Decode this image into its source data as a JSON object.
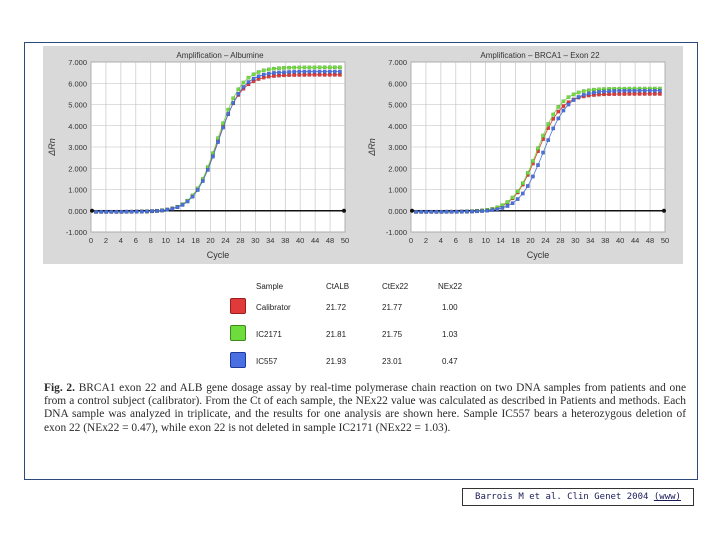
{
  "colors": {
    "calibrator": "#e03a3a",
    "sample_2171": "#6fdc3e",
    "sample_557": "#4a6fe0",
    "background": "#d9d9d9",
    "baseline": "#111111"
  },
  "chart_data": [
    {
      "type": "line",
      "title": "Amplification – Albumine",
      "xlabel": "Cycle",
      "ylabel": "ΔRn",
      "xlim": [
        0,
        50
      ],
      "ylim": [
        -1.0,
        7.0
      ],
      "x_ticks": [
        "0",
        "2",
        "4",
        "6",
        "8",
        "10",
        "14",
        "18",
        "20",
        "24",
        "28",
        "30",
        "34",
        "38",
        "40",
        "44",
        "48",
        "50"
      ],
      "y_ticks": [
        "7.000",
        "6.000",
        "5.000",
        "4.000",
        "3.000",
        "2.000",
        "1.000",
        "0.000",
        "-1.000"
      ],
      "y_tick_values": [
        7,
        6,
        5,
        4,
        3,
        2,
        1,
        0,
        -1
      ],
      "grid": true,
      "series": [
        {
          "name": "Calibrator",
          "color": "#e03a3a",
          "ct": 21.72,
          "plateau": 6.45
        },
        {
          "name": "IC2171",
          "color": "#6fdc3e",
          "ct": 21.81,
          "plateau": 6.8
        },
        {
          "name": "IC557",
          "color": "#4a6fe0",
          "ct": 21.93,
          "plateau": 6.6
        }
      ]
    },
    {
      "type": "line",
      "title": "Amplification – BRCA1 – Exon 22",
      "xlabel": "Cycle",
      "ylabel": "ΔRn",
      "xlim": [
        0,
        50
      ],
      "ylim": [
        -1.0,
        7.0
      ],
      "x_ticks": [
        "0",
        "2",
        "4",
        "6",
        "8",
        "10",
        "14",
        "18",
        "20",
        "24",
        "28",
        "30",
        "34",
        "38",
        "40",
        "44",
        "48",
        "50"
      ],
      "y_ticks": [
        "7.000",
        "6.000",
        "5.000",
        "4.000",
        "3.000",
        "2.000",
        "1.000",
        "0.000",
        "-1.000"
      ],
      "y_tick_values": [
        7,
        6,
        5,
        4,
        3,
        2,
        1,
        0,
        -1
      ],
      "grid": true,
      "series": [
        {
          "name": "Calibrator",
          "color": "#e03a3a",
          "ct": 21.77,
          "plateau": 5.55
        },
        {
          "name": "IC2171",
          "color": "#6fdc3e",
          "ct": 21.75,
          "plateau": 5.8
        },
        {
          "name": "IC557",
          "color": "#4a6fe0",
          "ct": 23.01,
          "plateau": 5.7
        }
      ]
    },
    {
      "type": "table",
      "headers": [
        "Sample",
        "CtALB",
        "CtEx22",
        "NEx22"
      ],
      "rows": [
        {
          "sample": "Calibrator",
          "ct_alb": "21.72",
          "ct_ex22": "21.77",
          "nex22": "1.00",
          "color": "#e03a3a"
        },
        {
          "sample": "IC2171",
          "ct_alb": "21.81",
          "ct_ex22": "21.75",
          "nex22": "1.03",
          "color": "#6fdc3e"
        },
        {
          "sample": "IC557",
          "ct_alb": "21.93",
          "ct_ex22": "23.01",
          "nex22": "0.47",
          "color": "#4a6fe0"
        }
      ]
    }
  ],
  "caption": {
    "label": "Fig. 2.",
    "text": "BRCA1 exon 22 and ALB gene dosage assay by real-time polymerase chain reaction on two DNA samples from patients and one from a control subject (calibrator). From the Ct of each sample, the NEx22 value was calculated as described in Patients and methods. Each DNA sample was analyzed in triplicate, and the results for one analysis are shown here. Sample IC557 bears a heterozygous deletion of exon 22 (NEx22 = 0.47), while exon 22 is not deleted in sample IC2171 (NEx22 = 1.03)."
  },
  "citation": {
    "text": "Barrois M et al. Clin Genet 2004",
    "link": "(www)"
  }
}
